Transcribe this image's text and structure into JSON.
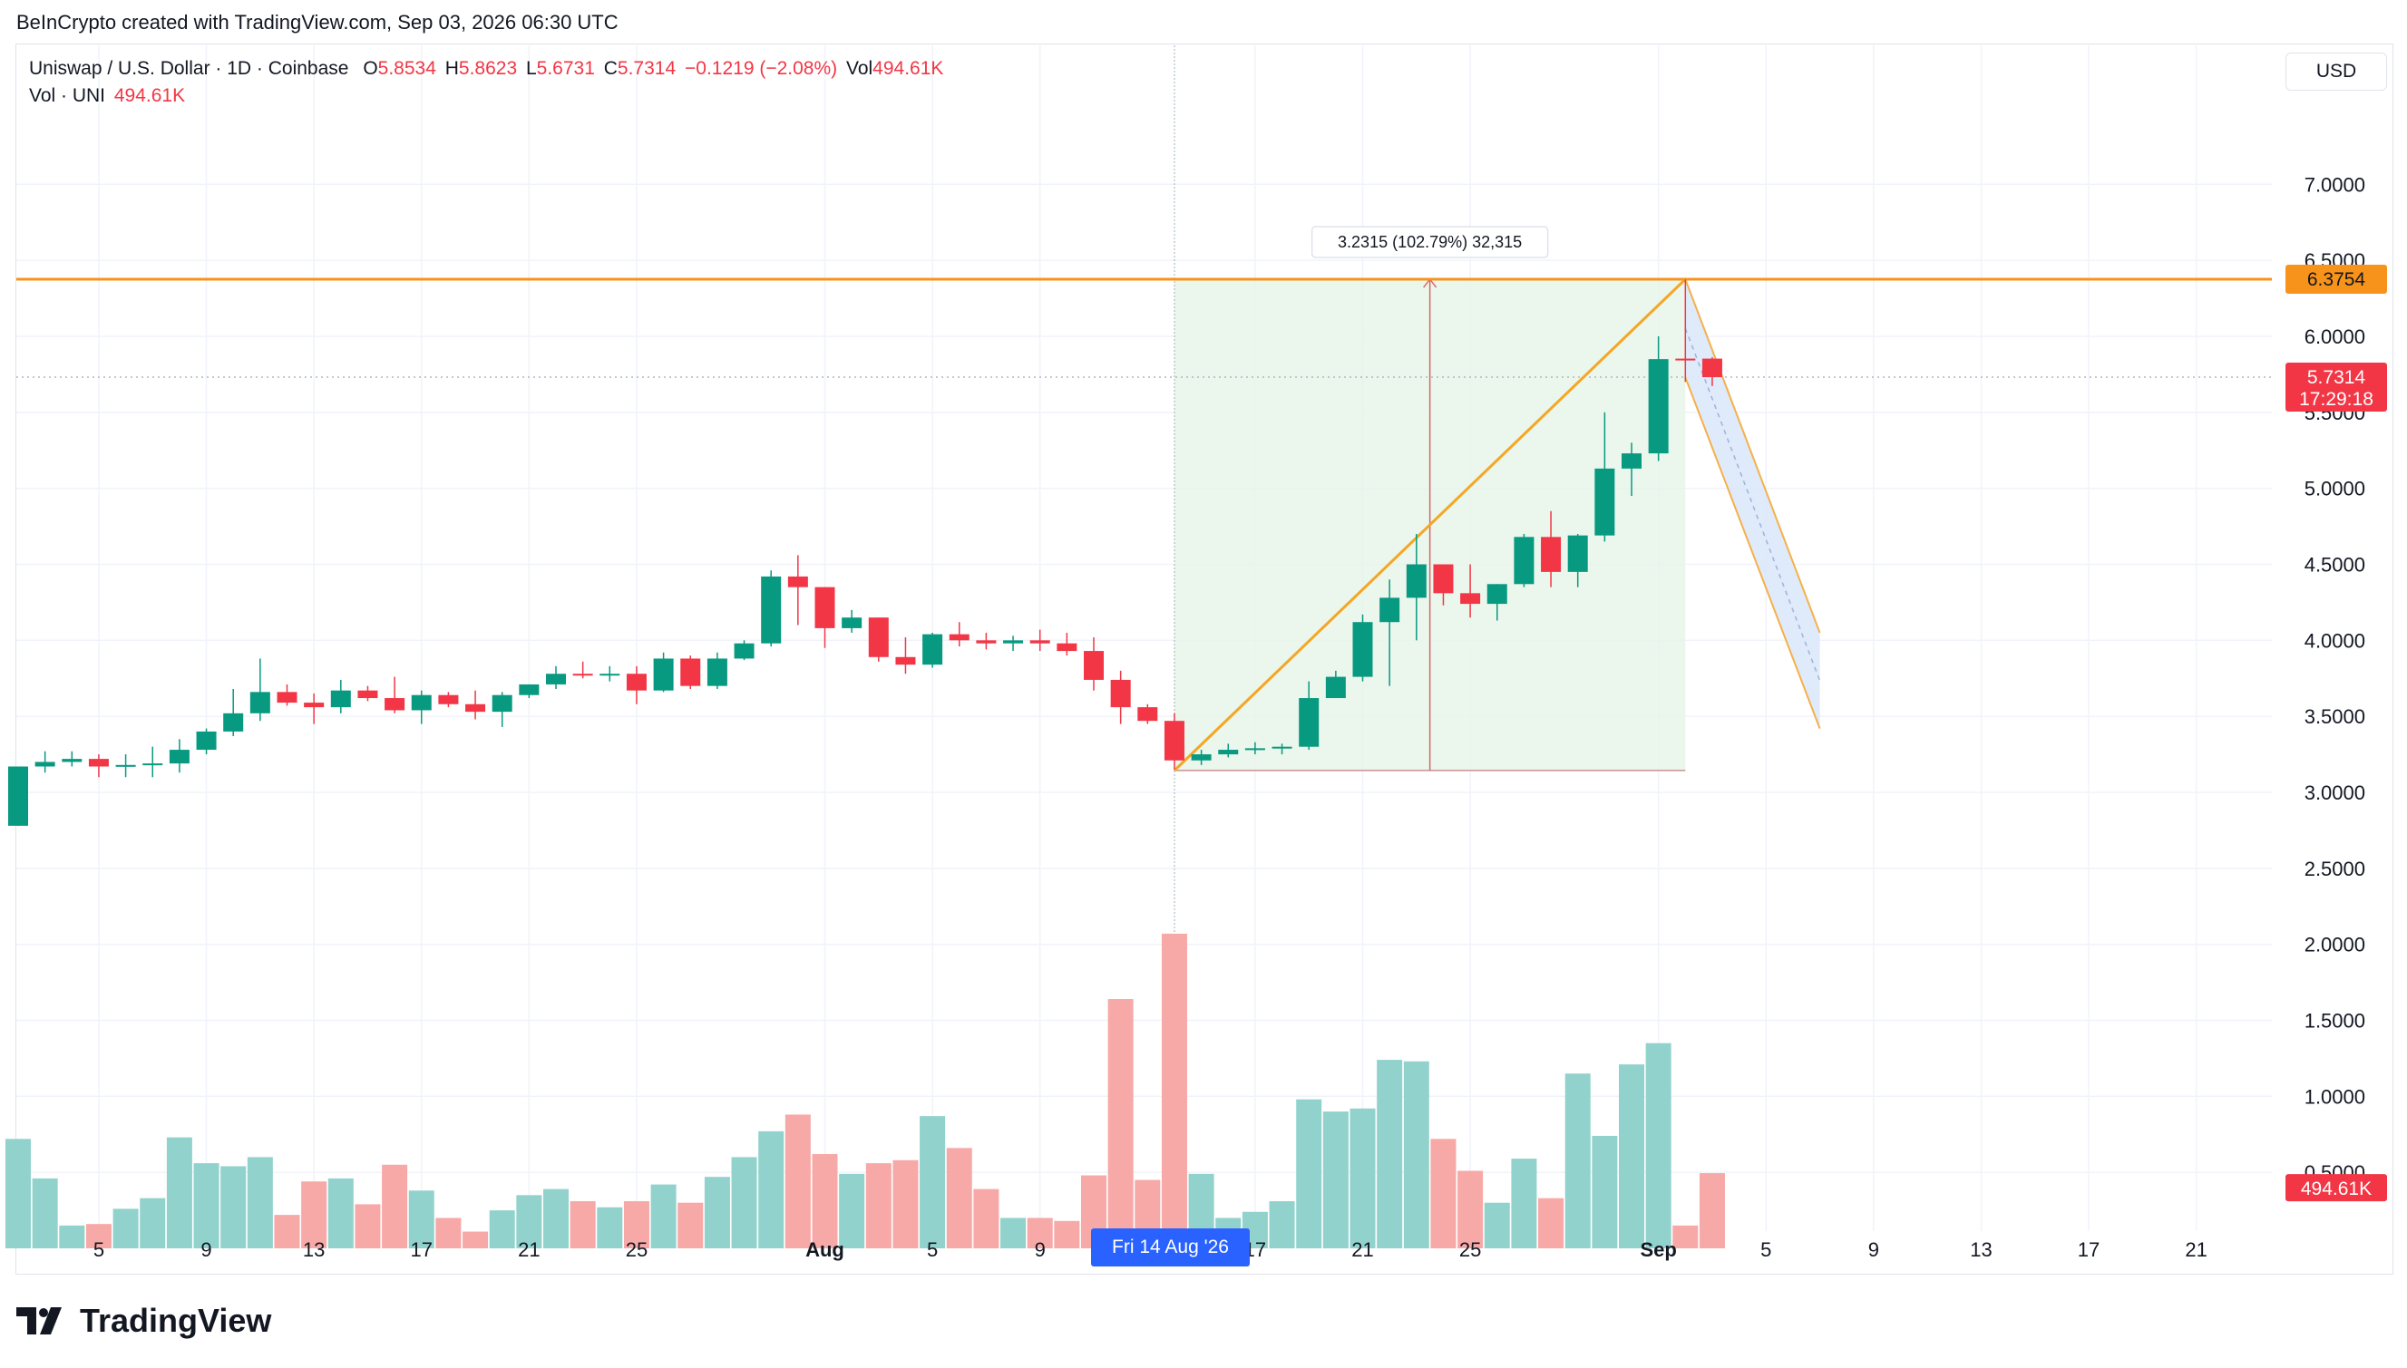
{
  "header": {
    "attribution": "BeInCrypto created with TradingView.com, Sep 03, 2026 06:30 UTC"
  },
  "legend": {
    "symbol": "Uniswap / U.S. Dollar · 1D · Coinbase",
    "open_label": "O",
    "open": "5.8534",
    "high_label": "H",
    "high": "5.8623",
    "low_label": "L",
    "low": "5.6731",
    "close_label": "C",
    "close": "5.7314",
    "change": "−0.1219 (−2.08%)",
    "vol_label": "Vol",
    "vol": "494.61K",
    "vol_line_label": "Vol · UNI",
    "vol_line_value": "494.61K"
  },
  "currency_button": "USD",
  "footer": {
    "brand": "TradingView"
  },
  "crosshair_date": "Fri 14 Aug '26",
  "measure_label": "3.2315 (102.79%) 32,315",
  "price_badges": {
    "resistance": "6.3754",
    "last_price": "5.7314",
    "countdown": "17:29:18",
    "volume": "494.61K"
  },
  "colors": {
    "up": "#089981",
    "down": "#f23645",
    "vol_up": "#92d2cc",
    "vol_down": "#f7a9a7",
    "resistance": "#f7931a",
    "measure_fill": "#e8f5e9",
    "crosshair_badge": "#2962ff",
    "channel_fill": "#dbe8fb"
  },
  "chart_data": {
    "type": "candlestick",
    "title": "Uniswap / U.S. Dollar · 1D · Coinbase",
    "y_axis": {
      "ticks": [
        "0.5000",
        "1.0000",
        "1.5000",
        "2.0000",
        "2.5000",
        "3.0000",
        "3.5000",
        "4.0000",
        "4.5000",
        "5.0000",
        "5.5000",
        "6.0000",
        "6.5000",
        "7.0000"
      ],
      "ylim": [
        -0.1,
        7.8
      ],
      "position": "right"
    },
    "x_axis": {
      "ticks": [
        {
          "label": "5",
          "date": "2026-07-05"
        },
        {
          "label": "9",
          "date": "2026-07-09"
        },
        {
          "label": "13",
          "date": "2026-07-13"
        },
        {
          "label": "17",
          "date": "2026-07-17"
        },
        {
          "label": "21",
          "date": "2026-07-21"
        },
        {
          "label": "25",
          "date": "2026-07-25"
        },
        {
          "label": "Aug",
          "date": "2026-08-01"
        },
        {
          "label": "5",
          "date": "2026-08-05"
        },
        {
          "label": "9",
          "date": "2026-08-09"
        },
        {
          "label": "17",
          "date": "2026-08-17"
        },
        {
          "label": "21",
          "date": "2026-08-21"
        },
        {
          "label": "25",
          "date": "2026-08-25"
        },
        {
          "label": "Sep",
          "date": "2026-09-01"
        },
        {
          "label": "5",
          "date": "2026-09-05"
        },
        {
          "label": "9",
          "date": "2026-09-09"
        },
        {
          "label": "13",
          "date": "2026-09-13"
        },
        {
          "label": "17",
          "date": "2026-09-17"
        },
        {
          "label": "21",
          "date": "2026-09-21"
        }
      ]
    },
    "first_date": "2026-07-02",
    "candles": [
      {
        "o": 2.78,
        "h": 3.17,
        "l": 2.78,
        "c": 3.17,
        "v": 0.72
      },
      {
        "o": 3.17,
        "h": 3.27,
        "l": 3.13,
        "c": 3.2,
        "v": 0.46
      },
      {
        "o": 3.2,
        "h": 3.27,
        "l": 3.17,
        "c": 3.22,
        "v": 0.15
      },
      {
        "o": 3.22,
        "h": 3.25,
        "l": 3.1,
        "c": 3.17,
        "v": 0.16
      },
      {
        "o": 3.17,
        "h": 3.25,
        "l": 3.1,
        "c": 3.18,
        "v": 0.26
      },
      {
        "o": 3.18,
        "h": 3.3,
        "l": 3.1,
        "c": 3.19,
        "v": 0.33
      },
      {
        "o": 3.19,
        "h": 3.35,
        "l": 3.13,
        "c": 3.28,
        "v": 0.73
      },
      {
        "o": 3.28,
        "h": 3.42,
        "l": 3.25,
        "c": 3.4,
        "v": 0.56
      },
      {
        "o": 3.4,
        "h": 3.68,
        "l": 3.37,
        "c": 3.52,
        "v": 0.54
      },
      {
        "o": 3.52,
        "h": 3.88,
        "l": 3.47,
        "c": 3.66,
        "v": 0.6
      },
      {
        "o": 3.66,
        "h": 3.71,
        "l": 3.57,
        "c": 3.59,
        "v": 0.22
      },
      {
        "o": 3.59,
        "h": 3.65,
        "l": 3.45,
        "c": 3.56,
        "v": 0.44
      },
      {
        "o": 3.56,
        "h": 3.74,
        "l": 3.52,
        "c": 3.67,
        "v": 0.46
      },
      {
        "o": 3.67,
        "h": 3.7,
        "l": 3.6,
        "c": 3.62,
        "v": 0.29
      },
      {
        "o": 3.62,
        "h": 3.76,
        "l": 3.52,
        "c": 3.54,
        "v": 0.55
      },
      {
        "o": 3.54,
        "h": 3.67,
        "l": 3.45,
        "c": 3.64,
        "v": 0.38
      },
      {
        "o": 3.64,
        "h": 3.66,
        "l": 3.56,
        "c": 3.58,
        "v": 0.2
      },
      {
        "o": 3.58,
        "h": 3.67,
        "l": 3.48,
        "c": 3.53,
        "v": 0.11
      },
      {
        "o": 3.53,
        "h": 3.66,
        "l": 3.43,
        "c": 3.64,
        "v": 0.25
      },
      {
        "o": 3.64,
        "h": 3.71,
        "l": 3.62,
        "c": 3.71,
        "v": 0.35
      },
      {
        "o": 3.71,
        "h": 3.83,
        "l": 3.68,
        "c": 3.78,
        "v": 0.39
      },
      {
        "o": 3.78,
        "h": 3.86,
        "l": 3.75,
        "c": 3.77,
        "v": 0.31
      },
      {
        "o": 3.77,
        "h": 3.83,
        "l": 3.73,
        "c": 3.78,
        "v": 0.27
      },
      {
        "o": 3.78,
        "h": 3.83,
        "l": 3.58,
        "c": 3.67,
        "v": 0.31
      },
      {
        "o": 3.67,
        "h": 3.92,
        "l": 3.66,
        "c": 3.88,
        "v": 0.42
      },
      {
        "o": 3.88,
        "h": 3.9,
        "l": 3.68,
        "c": 3.7,
        "v": 0.3
      },
      {
        "o": 3.7,
        "h": 3.92,
        "l": 3.68,
        "c": 3.88,
        "v": 0.47
      },
      {
        "o": 3.88,
        "h": 4.0,
        "l": 3.87,
        "c": 3.98,
        "v": 0.6
      },
      {
        "o": 3.98,
        "h": 4.46,
        "l": 3.96,
        "c": 4.42,
        "v": 0.77
      },
      {
        "o": 4.42,
        "h": 4.56,
        "l": 4.1,
        "c": 4.35,
        "v": 0.88
      },
      {
        "o": 4.35,
        "h": 4.35,
        "l": 3.95,
        "c": 4.08,
        "v": 0.62
      },
      {
        "o": 4.08,
        "h": 4.2,
        "l": 4.05,
        "c": 4.15,
        "v": 0.49
      },
      {
        "o": 4.15,
        "h": 4.15,
        "l": 3.86,
        "c": 3.89,
        "v": 0.56
      },
      {
        "o": 3.89,
        "h": 4.02,
        "l": 3.78,
        "c": 3.84,
        "v": 0.58
      },
      {
        "o": 3.84,
        "h": 4.05,
        "l": 3.82,
        "c": 4.04,
        "v": 0.87
      },
      {
        "o": 4.04,
        "h": 4.12,
        "l": 3.96,
        "c": 4.0,
        "v": 0.66
      },
      {
        "o": 4.0,
        "h": 4.05,
        "l": 3.94,
        "c": 3.98,
        "v": 0.39
      },
      {
        "o": 3.98,
        "h": 4.03,
        "l": 3.93,
        "c": 4.0,
        "v": 0.2
      },
      {
        "o": 4.0,
        "h": 4.07,
        "l": 3.93,
        "c": 3.98,
        "v": 0.2
      },
      {
        "o": 3.98,
        "h": 4.05,
        "l": 3.9,
        "c": 3.93,
        "v": 0.18
      },
      {
        "o": 3.93,
        "h": 4.02,
        "l": 3.67,
        "c": 3.74,
        "v": 0.48
      },
      {
        "o": 3.74,
        "h": 3.8,
        "l": 3.45,
        "c": 3.56,
        "v": 1.64
      },
      {
        "o": 3.56,
        "h": 3.58,
        "l": 3.45,
        "c": 3.47,
        "v": 0.45
      },
      {
        "o": 3.47,
        "h": 3.52,
        "l": 3.15,
        "c": 3.21,
        "v": 2.07
      },
      {
        "o": 3.21,
        "h": 3.28,
        "l": 3.18,
        "c": 3.25,
        "v": 0.49
      },
      {
        "o": 3.25,
        "h": 3.32,
        "l": 3.23,
        "c": 3.28,
        "v": 0.2
      },
      {
        "o": 3.28,
        "h": 3.33,
        "l": 3.25,
        "c": 3.29,
        "v": 0.24
      },
      {
        "o": 3.29,
        "h": 3.32,
        "l": 3.25,
        "c": 3.3,
        "v": 0.31
      },
      {
        "o": 3.3,
        "h": 3.73,
        "l": 3.28,
        "c": 3.62,
        "v": 0.98
      },
      {
        "o": 3.62,
        "h": 3.8,
        "l": 3.62,
        "c": 3.76,
        "v": 0.9
      },
      {
        "o": 3.76,
        "h": 4.17,
        "l": 3.73,
        "c": 4.12,
        "v": 0.92
      },
      {
        "o": 4.12,
        "h": 4.4,
        "l": 3.7,
        "c": 4.28,
        "v": 1.24
      },
      {
        "o": 4.28,
        "h": 4.7,
        "l": 4.0,
        "c": 4.5,
        "v": 1.23
      },
      {
        "o": 4.5,
        "h": 4.5,
        "l": 4.23,
        "c": 4.31,
        "v": 0.72
      },
      {
        "o": 4.31,
        "h": 4.5,
        "l": 4.15,
        "c": 4.24,
        "v": 0.51
      },
      {
        "o": 4.24,
        "h": 4.37,
        "l": 4.13,
        "c": 4.37,
        "v": 0.3
      },
      {
        "o": 4.37,
        "h": 4.7,
        "l": 4.35,
        "c": 4.68,
        "v": 0.59
      },
      {
        "o": 4.68,
        "h": 4.85,
        "l": 4.35,
        "c": 4.45,
        "v": 0.33
      },
      {
        "o": 4.45,
        "h": 4.7,
        "l": 4.35,
        "c": 4.69,
        "v": 1.15
      },
      {
        "o": 4.69,
        "h": 5.5,
        "l": 4.65,
        "c": 5.13,
        "v": 0.74
      },
      {
        "o": 5.13,
        "h": 5.3,
        "l": 4.95,
        "c": 5.23,
        "v": 1.21
      },
      {
        "o": 5.23,
        "h": 6.0,
        "l": 5.18,
        "c": 5.85,
        "v": 1.35
      },
      {
        "o": 5.8534,
        "h": 6.3754,
        "l": 5.7,
        "c": 5.85,
        "v": 0.15
      },
      {
        "o": 5.8534,
        "h": 5.8623,
        "l": 5.6731,
        "c": 5.7314,
        "v": 0.49461
      }
    ],
    "resistance_level": 6.3754,
    "last_price": 5.7314,
    "measure": {
      "from_date": "2026-08-14",
      "to_date": "2026-09-02",
      "low": 3.1439,
      "high": 6.3754,
      "change": 3.2315,
      "change_pct": 102.79,
      "label": "3.2315 (102.79%) 32,315"
    },
    "rising_line": {
      "from": {
        "date": "2026-08-14",
        "price": 3.1439
      },
      "to": {
        "date": "2026-09-02",
        "price": 6.3754
      }
    },
    "projected_channel": {
      "upper": [
        {
          "date": "2026-09-02",
          "price": 6.3754
        },
        {
          "date": "2026-09-07",
          "price": 4.05
        }
      ],
      "lower": [
        {
          "date": "2026-09-02",
          "price": 5.73
        },
        {
          "date": "2026-09-07",
          "price": 3.42
        }
      ]
    },
    "crosshair_date": "2026-08-14",
    "grid": true,
    "legend_position": "top-left"
  }
}
